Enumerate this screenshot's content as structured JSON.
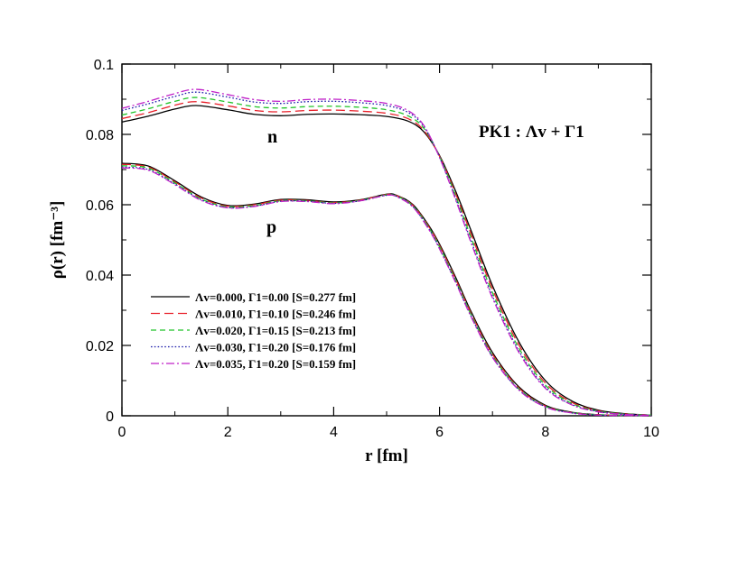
{
  "chart_data": {
    "type": "line",
    "title": "",
    "xlabel": "r [fm]",
    "ylabel": "ρ(r) [fm⁻³]",
    "xlim": [
      0,
      10
    ],
    "ylim": [
      0,
      0.1
    ],
    "x_ticks": [
      "0",
      "2",
      "4",
      "6",
      "8",
      "10"
    ],
    "y_ticks": [
      "0",
      "0.02",
      "0.04",
      "0.06",
      "0.08",
      "0.1"
    ],
    "grid": false,
    "legend_position": "bottom-left",
    "annotations": {
      "model": "PK1 : Λv + Γ1",
      "neutron_label": "n",
      "proton_label": "p"
    },
    "series": [
      {
        "name": "Λv=0.000, Γ1=0.00 [S=0.277 fm]",
        "color": "#000000",
        "dash": "solid",
        "neutron": {
          "x": [
            0,
            0.5,
            1,
            1.4,
            2,
            2.5,
            3,
            3.5,
            4,
            4.5,
            5,
            5.4,
            5.7,
            6,
            6.3,
            6.6,
            7,
            7.5,
            8,
            8.5,
            9,
            9.5,
            10
          ],
          "y": [
            0.0835,
            0.0852,
            0.0872,
            0.0882,
            0.087,
            0.0857,
            0.0853,
            0.0857,
            0.0858,
            0.0856,
            0.0851,
            0.0838,
            0.0808,
            0.074,
            0.064,
            0.0525,
            0.037,
            0.021,
            0.01,
            0.0042,
            0.0016,
            0.0006,
            0.0002
          ]
        },
        "proton": {
          "x": [
            0,
            0.5,
            1,
            1.5,
            2,
            2.5,
            3,
            3.5,
            4,
            4.5,
            5,
            5.2,
            5.5,
            5.8,
            6,
            6.3,
            6.6,
            7,
            7.5,
            8,
            8.5,
            9,
            9.5,
            10
          ],
          "y": [
            0.0718,
            0.071,
            0.0668,
            0.0622,
            0.0598,
            0.0602,
            0.0615,
            0.0614,
            0.0608,
            0.0614,
            0.063,
            0.0626,
            0.06,
            0.054,
            0.0488,
            0.0395,
            0.0295,
            0.018,
            0.0082,
            0.003,
            0.001,
            0.0003,
            0.0001,
            0.0
          ]
        }
      },
      {
        "name": "Λv=0.010, Γ1=0.10 [S=0.246 fm]",
        "color": "#e8202a",
        "dash": "long-dash",
        "neutron": {
          "x": [
            0,
            0.5,
            1,
            1.4,
            2,
            2.5,
            3,
            3.5,
            4,
            4.5,
            5,
            5.4,
            5.7,
            6,
            6.3,
            6.6,
            7,
            7.5,
            8,
            8.5,
            9,
            9.5,
            10
          ],
          "y": [
            0.0845,
            0.0862,
            0.0883,
            0.0893,
            0.0881,
            0.0868,
            0.0864,
            0.0868,
            0.0869,
            0.0866,
            0.086,
            0.0845,
            0.0812,
            0.0738,
            0.0633,
            0.0515,
            0.036,
            0.0201,
            0.0093,
            0.0038,
            0.0014,
            0.0005,
            0.0002
          ]
        },
        "proton": {
          "x": [
            0,
            0.5,
            1,
            1.5,
            2,
            2.5,
            3,
            3.5,
            4,
            4.5,
            5,
            5.2,
            5.5,
            5.8,
            6,
            6.3,
            6.6,
            7,
            7.5,
            8,
            8.5,
            9,
            9.5,
            10
          ],
          "y": [
            0.0715,
            0.0707,
            0.0665,
            0.0619,
            0.0596,
            0.06,
            0.0613,
            0.0612,
            0.0606,
            0.0613,
            0.0629,
            0.0625,
            0.0598,
            0.0537,
            0.0484,
            0.039,
            0.029,
            0.0175,
            0.0079,
            0.0028,
            0.0009,
            0.0003,
            0.0001,
            0.0
          ]
        }
      },
      {
        "name": "Λv=0.020, Γ1=0.15 [S=0.213 fm]",
        "color": "#22c42a",
        "dash": "dash",
        "neutron": {
          "x": [
            0,
            0.5,
            1,
            1.4,
            2,
            2.5,
            3,
            3.5,
            4,
            4.5,
            5,
            5.4,
            5.7,
            6,
            6.3,
            6.6,
            7,
            7.5,
            8,
            8.5,
            9,
            9.5,
            10
          ],
          "y": [
            0.0855,
            0.0873,
            0.0894,
            0.0905,
            0.0892,
            0.0879,
            0.0875,
            0.0879,
            0.088,
            0.0877,
            0.087,
            0.0853,
            0.0818,
            0.0737,
            0.0627,
            0.0505,
            0.035,
            0.0192,
            0.0087,
            0.0035,
            0.0013,
            0.0005,
            0.0002
          ]
        },
        "proton": {
          "x": [
            0,
            0.5,
            1,
            1.5,
            2,
            2.5,
            3,
            3.5,
            4,
            4.5,
            5,
            5.2,
            5.5,
            5.8,
            6,
            6.3,
            6.6,
            7,
            7.5,
            8,
            8.5,
            9,
            9.5,
            10
          ],
          "y": [
            0.0711,
            0.0704,
            0.0662,
            0.0616,
            0.0594,
            0.0598,
            0.0611,
            0.0611,
            0.0605,
            0.0612,
            0.0628,
            0.0624,
            0.0596,
            0.0534,
            0.048,
            0.0386,
            0.0286,
            0.0171,
            0.0076,
            0.0027,
            0.0009,
            0.0003,
            0.0001,
            0.0
          ]
        }
      },
      {
        "name": "Λv=0.030, Γ1=0.20 [S=0.176 fm]",
        "color": "#1a1aa8",
        "dash": "dot",
        "neutron": {
          "x": [
            0,
            0.5,
            1,
            1.4,
            2,
            2.5,
            3,
            3.5,
            4,
            4.5,
            5,
            5.4,
            5.7,
            6,
            6.3,
            6.6,
            7,
            7.5,
            8,
            8.5,
            9,
            9.5,
            10
          ],
          "y": [
            0.0868,
            0.0887,
            0.0908,
            0.092,
            0.0906,
            0.0892,
            0.0888,
            0.0893,
            0.0894,
            0.089,
            0.0882,
            0.0863,
            0.0823,
            0.0735,
            0.062,
            0.0495,
            0.034,
            0.0184,
            0.0081,
            0.0032,
            0.0012,
            0.0004,
            0.0001
          ]
        },
        "proton": {
          "x": [
            0,
            0.5,
            1,
            1.5,
            2,
            2.5,
            3,
            3.5,
            4,
            4.5,
            5,
            5.2,
            5.5,
            5.8,
            6,
            6.3,
            6.6,
            7,
            7.5,
            8,
            8.5,
            9,
            9.5,
            10
          ],
          "y": [
            0.0707,
            0.07,
            0.0659,
            0.0614,
            0.0592,
            0.0596,
            0.061,
            0.061,
            0.0604,
            0.0611,
            0.0627,
            0.0623,
            0.0594,
            0.0531,
            0.0476,
            0.0382,
            0.0282,
            0.0168,
            0.0074,
            0.0026,
            0.0008,
            0.0002,
            0.0001,
            0.0
          ]
        }
      },
      {
        "name": "Λv=0.035, Γ1=0.20 [S=0.159 fm]",
        "color": "#c020c8",
        "dash": "dash-dot",
        "neutron": {
          "x": [
            0,
            0.5,
            1,
            1.4,
            2,
            2.5,
            3,
            3.5,
            4,
            4.5,
            5,
            5.4,
            5.7,
            6,
            6.3,
            6.6,
            7,
            7.5,
            8,
            8.5,
            9,
            9.5,
            10
          ],
          "y": [
            0.0874,
            0.0894,
            0.0916,
            0.0928,
            0.0913,
            0.0899,
            0.0894,
            0.0899,
            0.09,
            0.0896,
            0.0888,
            0.0868,
            0.0826,
            0.0734,
            0.0616,
            0.049,
            0.0335,
            0.018,
            0.0078,
            0.0031,
            0.0011,
            0.0004,
            0.0001
          ]
        },
        "proton": {
          "x": [
            0,
            0.5,
            1,
            1.5,
            2,
            2.5,
            3,
            3.5,
            4,
            4.5,
            5,
            5.2,
            5.5,
            5.8,
            6,
            6.3,
            6.6,
            7,
            7.5,
            8,
            8.5,
            9,
            9.5,
            10
          ],
          "y": [
            0.0705,
            0.0698,
            0.0657,
            0.0612,
            0.0591,
            0.0595,
            0.0609,
            0.0609,
            0.0603,
            0.0611,
            0.0627,
            0.0622,
            0.0593,
            0.0529,
            0.0474,
            0.038,
            0.028,
            0.0166,
            0.0073,
            0.0025,
            0.0008,
            0.0002,
            0.0001,
            0.0
          ]
        }
      }
    ]
  }
}
